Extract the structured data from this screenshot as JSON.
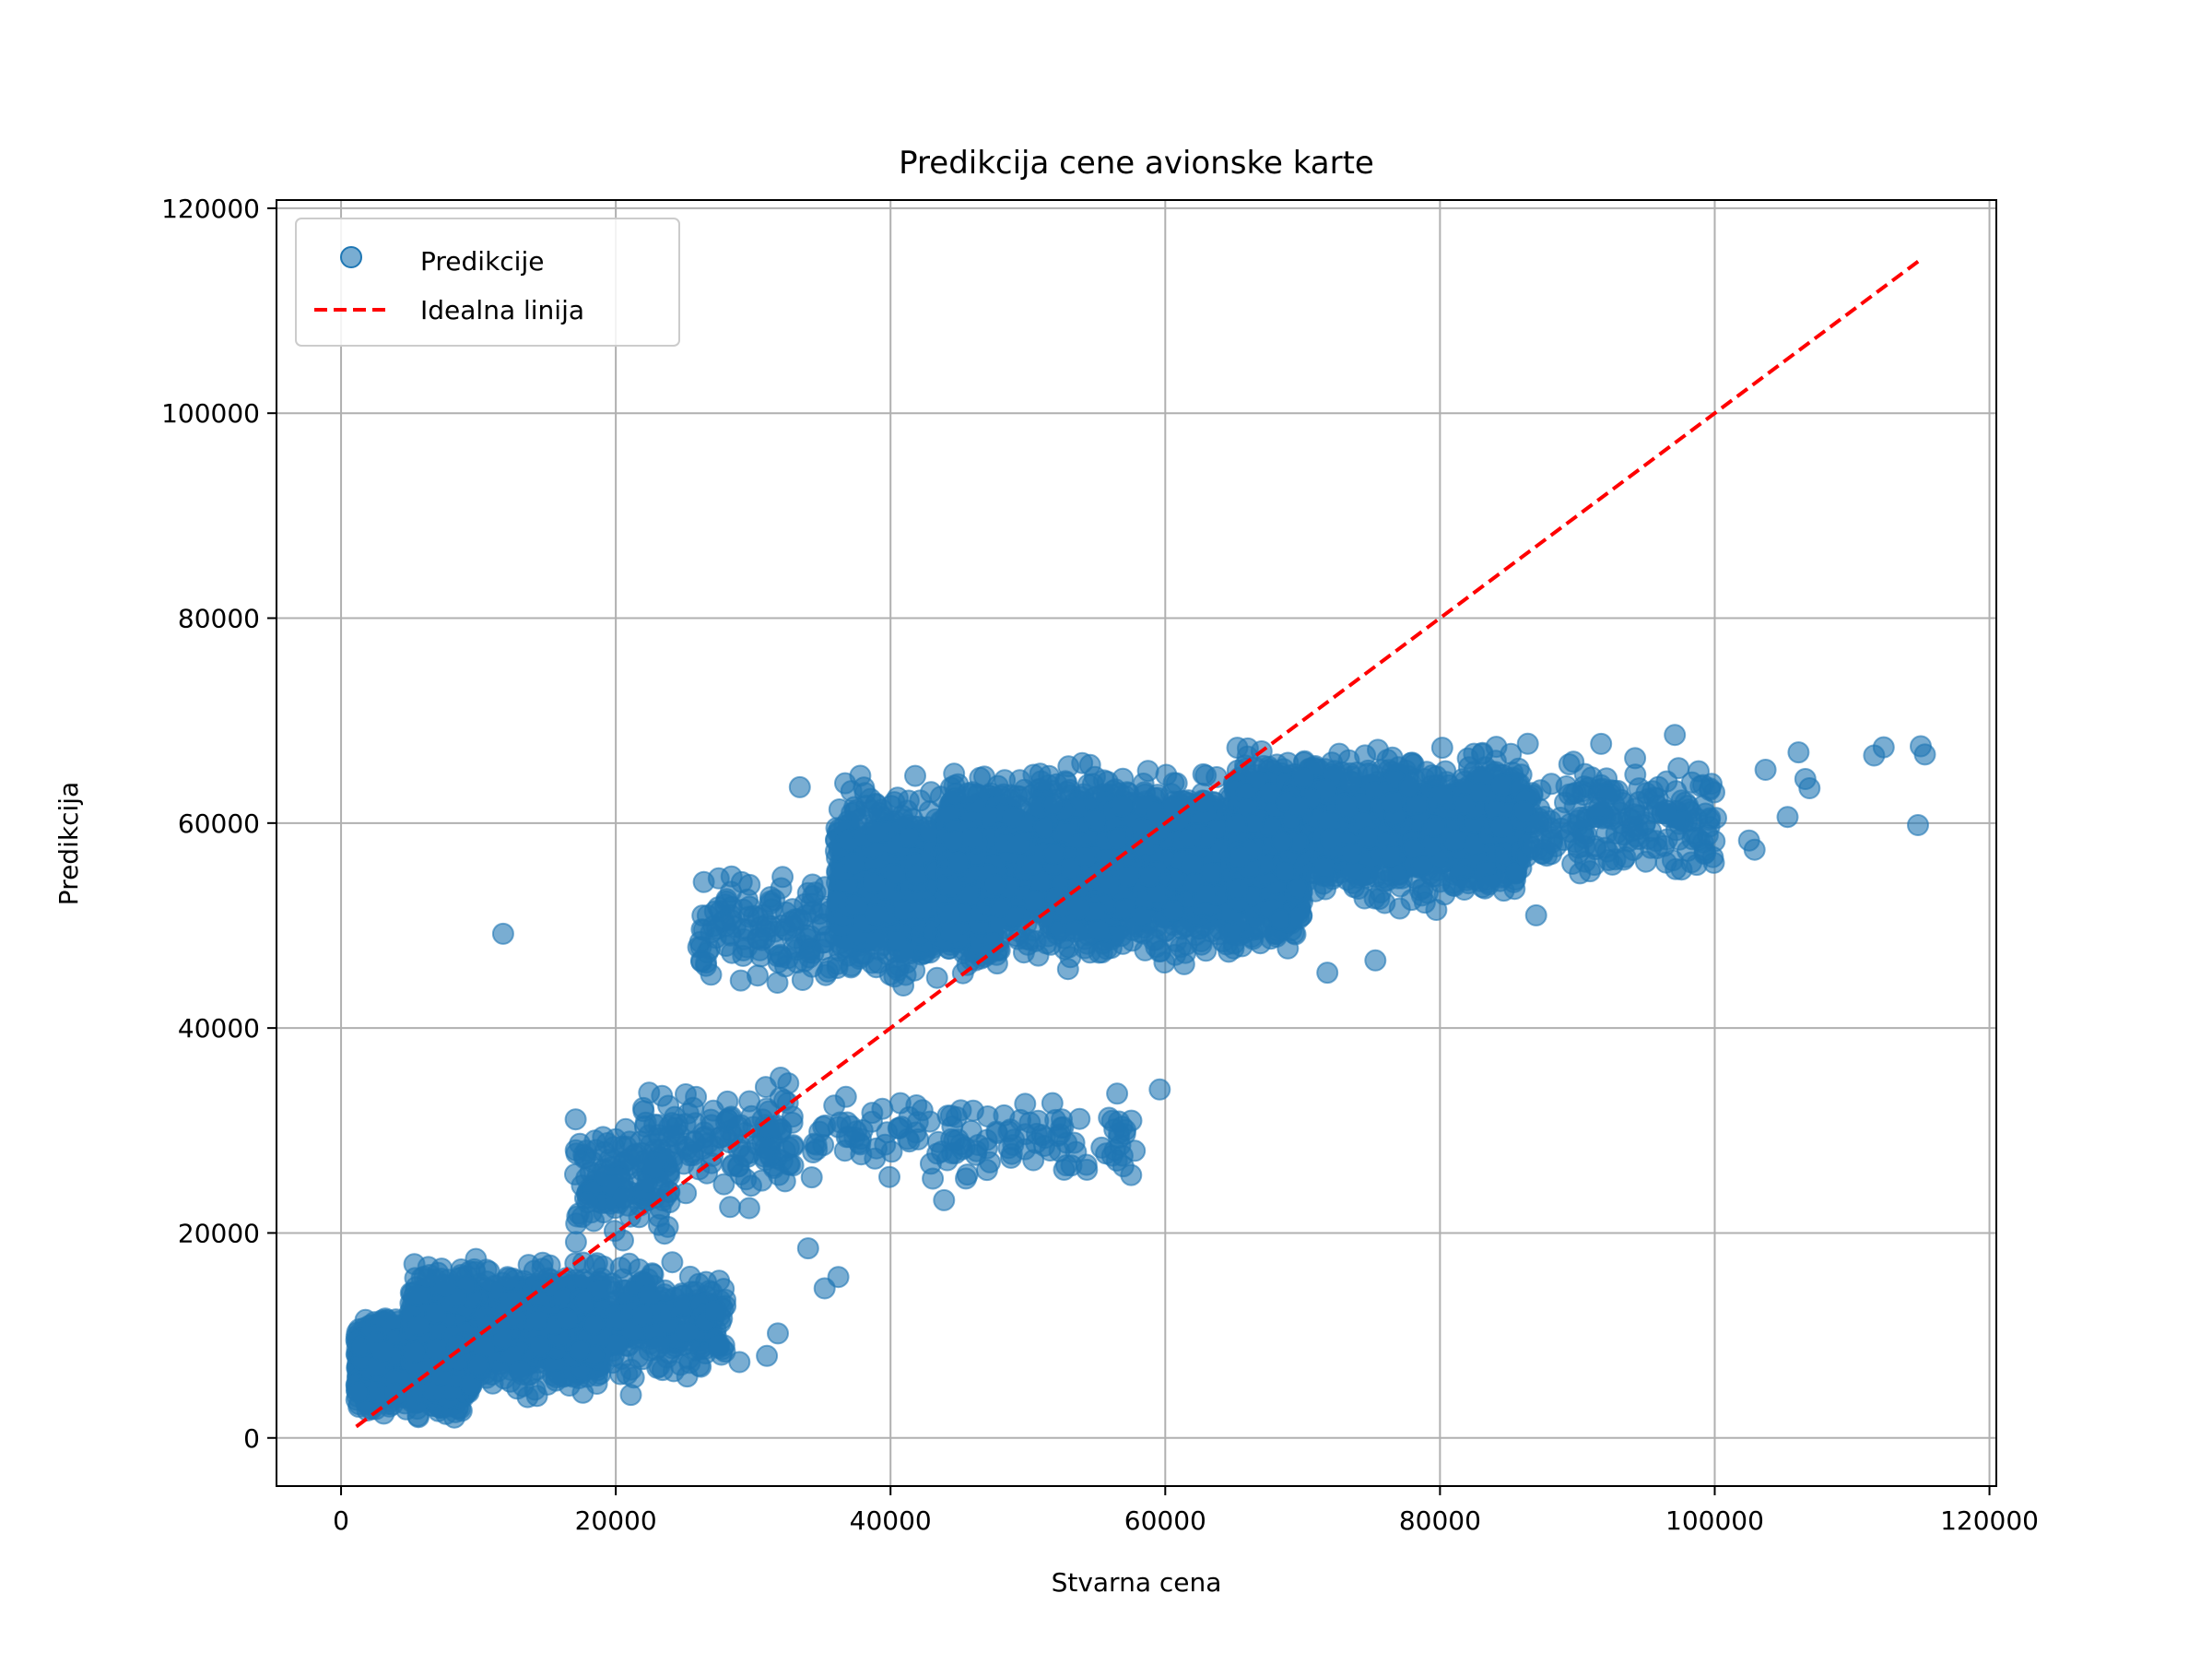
{
  "chart_data": {
    "type": "scatter",
    "title": "Predikcija cene avionske karte",
    "xlabel": "Stvarna cena",
    "ylabel": "Predikcija",
    "xlim": [
      -4700,
      120500
    ],
    "ylim": [
      -4700,
      120800
    ],
    "xticks": [
      0,
      20000,
      40000,
      60000,
      80000,
      100000,
      120000
    ],
    "yticks": [
      0,
      20000,
      40000,
      60000,
      80000,
      100000,
      120000
    ],
    "grid": true,
    "legend_position": "upper-left",
    "colors": {
      "scatter": "#1f77b4",
      "ideal_line": "#ff0000"
    },
    "series": [
      {
        "name": "Predikcije",
        "kind": "scatter",
        "clusters": [
          {
            "x_range": [
              1100,
              9500
            ],
            "y_range": [
              1200,
              13000
            ],
            "count": 1400
          },
          {
            "x_range": [
              5000,
              19000
            ],
            "y_range": [
              3000,
              18500
            ],
            "count": 1100
          },
          {
            "x_range": [
              14000,
              28000
            ],
            "y_range": [
              5000,
              18000
            ],
            "count": 500
          },
          {
            "x_range": [
              17000,
              24000
            ],
            "y_range": [
              18000,
              32000
            ],
            "count": 140
          },
          {
            "x_range": [
              22000,
              33000
            ],
            "y_range": [
              22000,
              36000
            ],
            "count": 140
          },
          {
            "x_range": [
              26000,
              36000
            ],
            "y_range": [
              42000,
              57000
            ],
            "count": 130
          },
          {
            "x_range": [
              36000,
              48000
            ],
            "y_range": [
              43000,
              65000
            ],
            "count": 1300
          },
          {
            "x_range": [
              44000,
              70000
            ],
            "y_range": [
              45000,
              67000
            ],
            "count": 2600
          },
          {
            "x_range": [
              65000,
              86000
            ],
            "y_range": [
              51000,
              68500
            ],
            "count": 1700
          },
          {
            "x_range": [
              84000,
              100000
            ],
            "y_range": [
              53000,
              68000
            ],
            "count": 240
          },
          {
            "x_range": [
              34000,
              58000
            ],
            "y_range": [
              24000,
              35000
            ],
            "count": 130
          }
        ],
        "points": [
          [
            11800,
            49200
          ],
          [
            33400,
            63500
          ],
          [
            115000,
            67500
          ],
          [
            115300,
            66700
          ],
          [
            114800,
            59800
          ],
          [
            111600,
            66600
          ],
          [
            112300,
            67400
          ],
          [
            106900,
            63400
          ],
          [
            106100,
            66900
          ],
          [
            106600,
            64300
          ],
          [
            105300,
            60600
          ],
          [
            103700,
            65200
          ],
          [
            102900,
            57400
          ],
          [
            102500,
            58300
          ],
          [
            100100,
            60500
          ],
          [
            97100,
            68600
          ],
          [
            87000,
            51000
          ],
          [
            75300,
            46600
          ],
          [
            71800,
            45400
          ],
          [
            59600,
            34000
          ],
          [
            56300,
            30100
          ],
          [
            56500,
            33600
          ],
          [
            52800,
            26600
          ],
          [
            53500,
            27900
          ],
          [
            51200,
            28500
          ],
          [
            50400,
            27100
          ],
          [
            48600,
            29900
          ],
          [
            49800,
            32600
          ],
          [
            43900,
            23200
          ],
          [
            45600,
            25700
          ],
          [
            34000,
            18500
          ],
          [
            36200,
            15700
          ],
          [
            35200,
            14600
          ],
          [
            29000,
            7400
          ],
          [
            31000,
            8000
          ],
          [
            31800,
            10200
          ],
          [
            25200,
            6000
          ],
          [
            21100,
            4200
          ],
          [
            17600,
            4400
          ],
          [
            3000,
            8500
          ]
        ]
      },
      {
        "name": "Idealna linija",
        "kind": "line",
        "style": "dashed",
        "x": [
          1105,
          115000
        ],
        "y": [
          1105,
          115000
        ]
      }
    ]
  }
}
